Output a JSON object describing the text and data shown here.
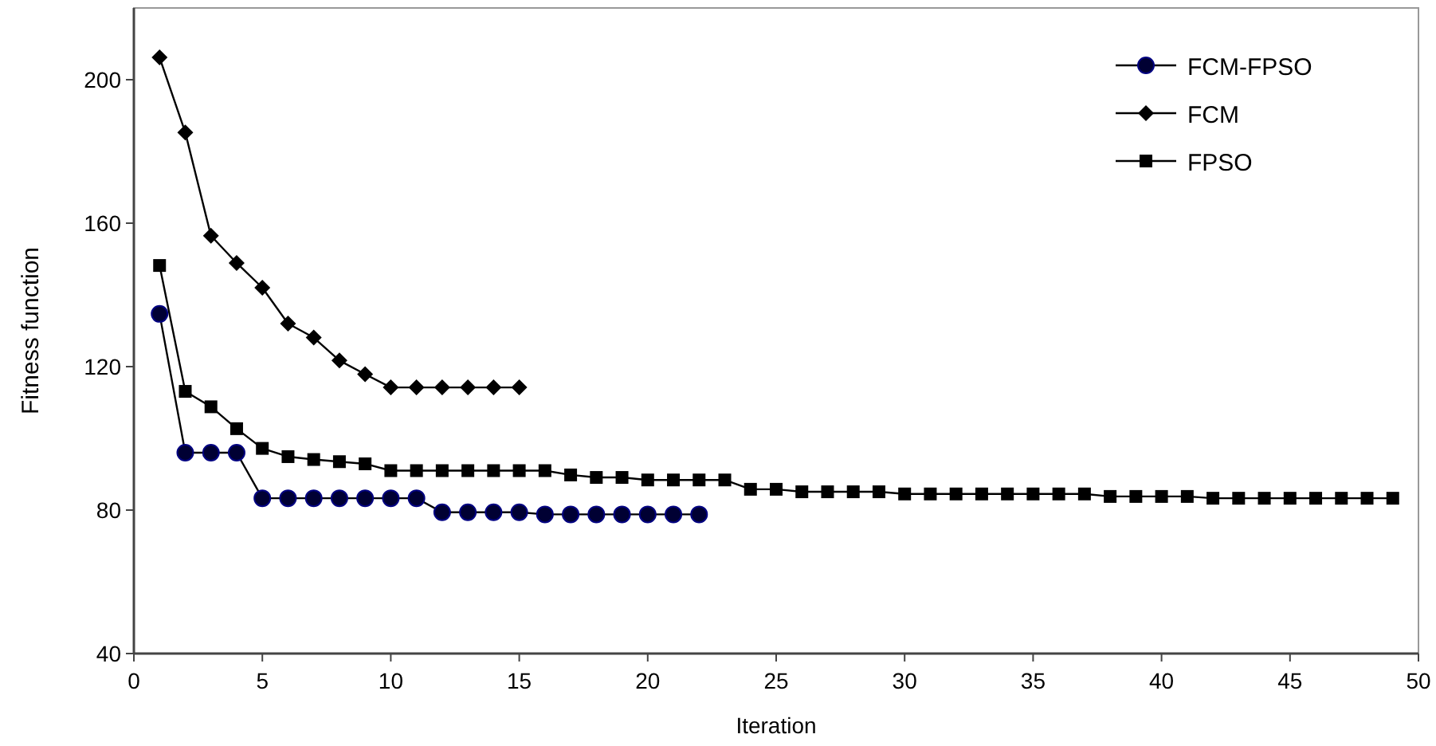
{
  "chart_data": {
    "type": "line",
    "xlabel": "Iteration",
    "ylabel": "Fitness function",
    "xlim": [
      0,
      50
    ],
    "ylim": [
      40,
      220
    ],
    "xticks": [
      0,
      5,
      10,
      15,
      20,
      25,
      30,
      35,
      40,
      45,
      50
    ],
    "yticks": [
      40,
      80,
      120,
      160,
      200
    ],
    "grid": false,
    "legend": "top right",
    "line_style": "solid",
    "series": [
      {
        "name": "FCM-FPSO",
        "color": "#000033",
        "marker": "circle",
        "x": [
          1,
          2,
          3,
          4,
          5,
          6,
          7,
          8,
          9,
          10,
          11,
          12,
          13,
          14,
          15,
          16,
          17,
          18,
          19,
          20,
          21,
          22
        ],
        "values": [
          134.7,
          96,
          96,
          96,
          83.3,
          83.3,
          83.3,
          83.3,
          83.3,
          83.3,
          83.3,
          79.4,
          79.4,
          79.4,
          79.4,
          78.8,
          78.8,
          78.8,
          78.8,
          78.8,
          78.8,
          78.8
        ]
      },
      {
        "name": "FCM",
        "color": "#000000",
        "marker": "diamond",
        "x": [
          1,
          2,
          3,
          4,
          5,
          6,
          7,
          8,
          9,
          10,
          11,
          12,
          13,
          14,
          15
        ],
        "values": [
          206.2,
          185.3,
          156.5,
          148.9,
          142,
          132,
          128.1,
          121.7,
          117.9,
          114.2,
          114.2,
          114.2,
          114.2,
          114.2,
          114.2
        ]
      },
      {
        "name": "FPSO",
        "color": "#000000",
        "marker": "square",
        "x": [
          1,
          2,
          3,
          4,
          5,
          6,
          7,
          8,
          9,
          10,
          11,
          12,
          13,
          14,
          15,
          16,
          17,
          18,
          19,
          20,
          21,
          22,
          23,
          24,
          25,
          26,
          27,
          28,
          29,
          30,
          31,
          32,
          33,
          34,
          35,
          36,
          37,
          38,
          39,
          40,
          41,
          42,
          43,
          44,
          45,
          46,
          47,
          48,
          49
        ],
        "values": [
          148.2,
          113.1,
          108.8,
          102.7,
          97.2,
          94.9,
          94.1,
          93.5,
          92.9,
          91,
          91,
          91,
          91,
          91,
          91,
          91,
          89.8,
          89.1,
          89.1,
          88.4,
          88.4,
          88.4,
          88.4,
          85.8,
          85.8,
          85.1,
          85.1,
          85.1,
          85.1,
          84.5,
          84.5,
          84.5,
          84.5,
          84.5,
          84.5,
          84.5,
          84.5,
          83.8,
          83.8,
          83.8,
          83.8,
          83.3,
          83.3,
          83.3,
          83.3,
          83.3,
          83.3,
          83.3,
          83.3
        ]
      }
    ]
  }
}
